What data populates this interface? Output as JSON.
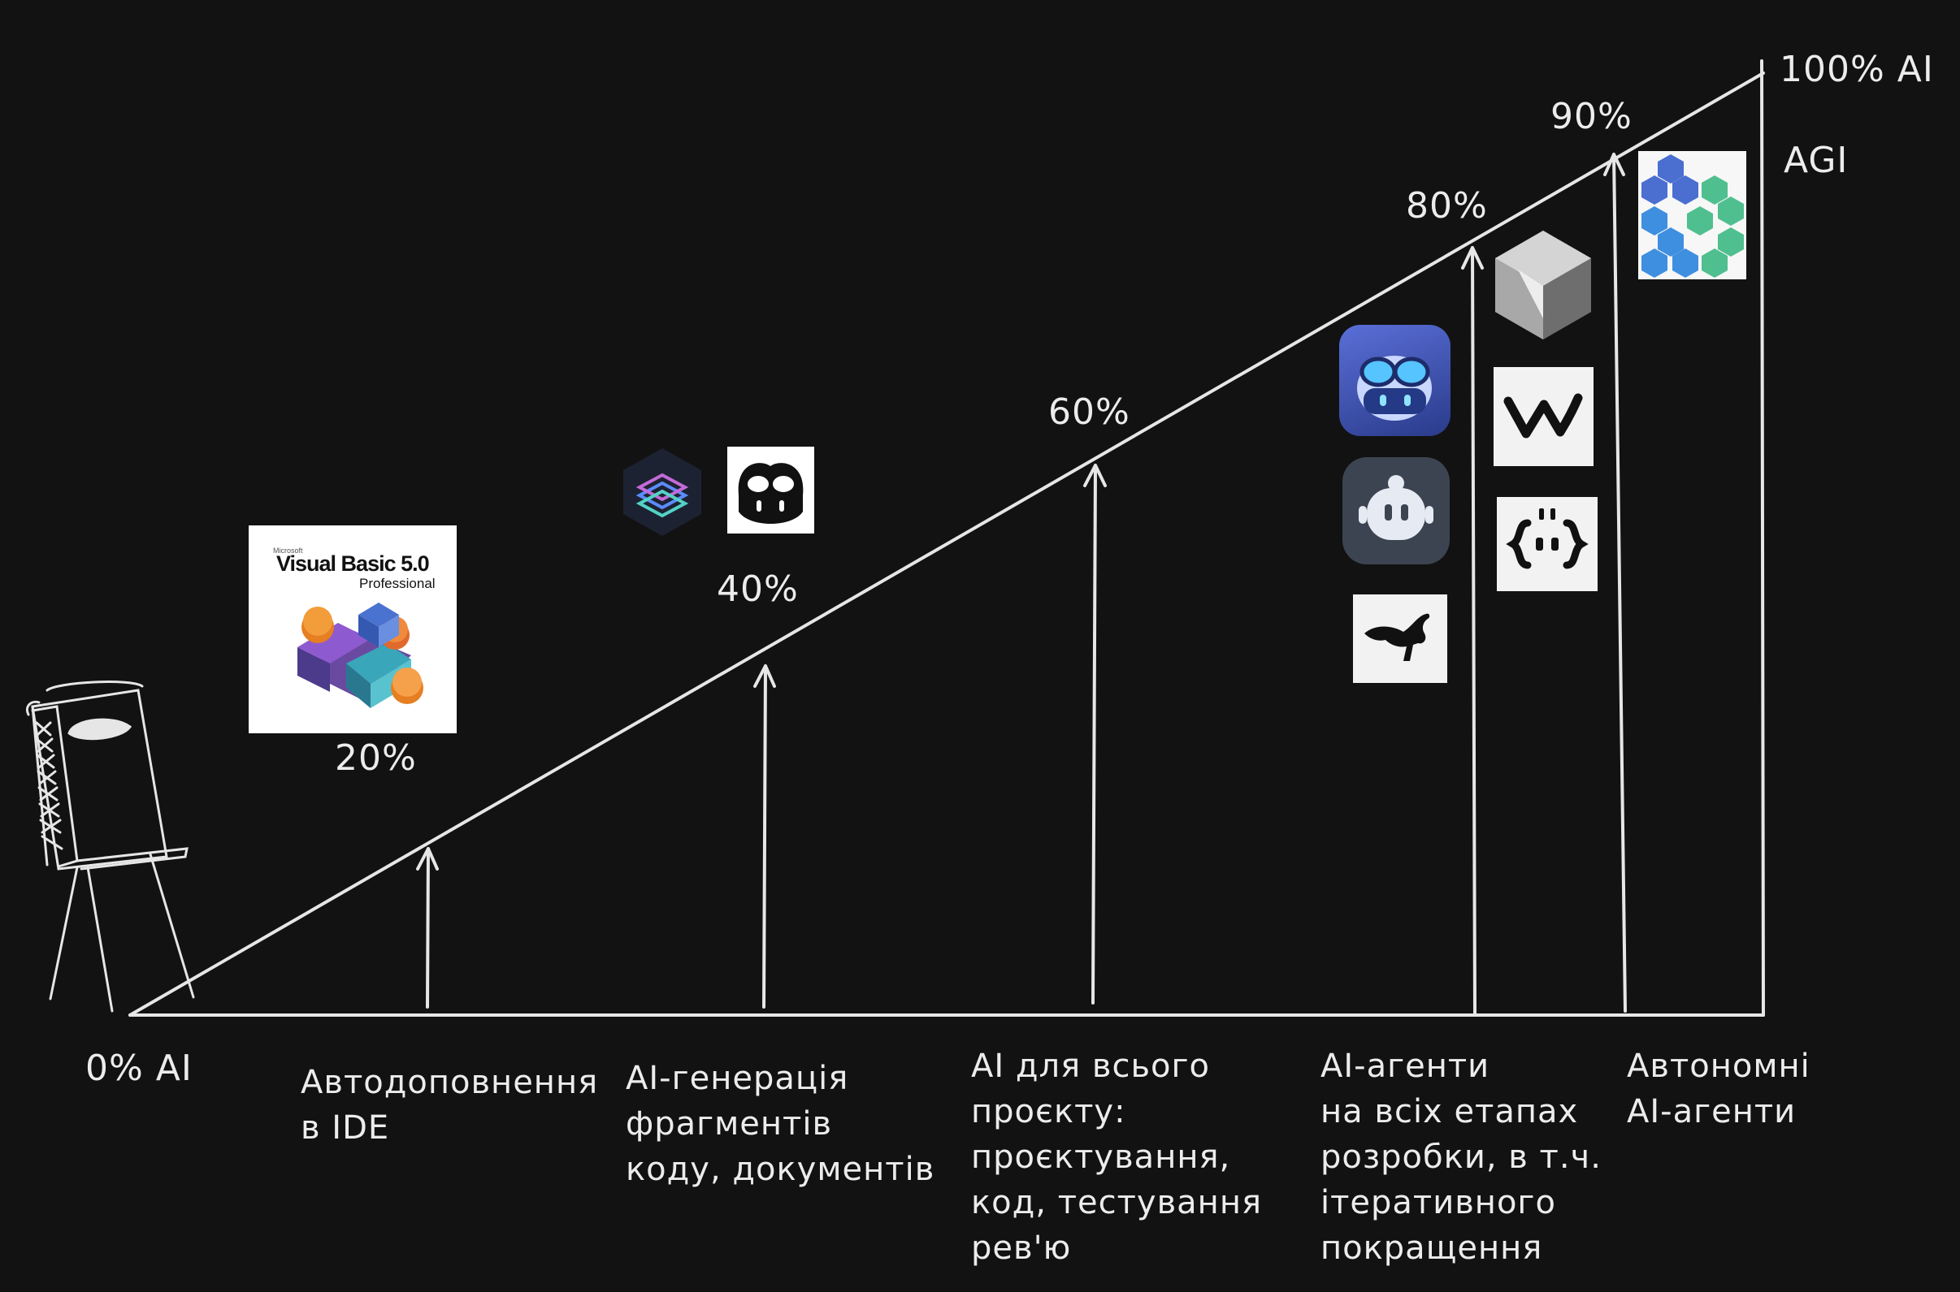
{
  "axis": {
    "start_label": "0% AI",
    "end_label": "100% AI",
    "agi_label": "AGI"
  },
  "stages": [
    {
      "percent": "20%",
      "lines": [
        "Автодоповнення",
        "в IDE"
      ]
    },
    {
      "percent": "40%",
      "lines": [
        "AI-генерація",
        "фрагментів",
        "коду, документів"
      ]
    },
    {
      "percent": "60%",
      "lines": [
        "AI для всього",
        "проєкту:",
        "проєктування,",
        "код, тестування",
        "рев'ю"
      ]
    },
    {
      "percent": "80%",
      "lines": [
        "AI-агенти",
        "на всіх етапах",
        "розробки, в т.ч.",
        "ітеративного",
        "покращення"
      ]
    },
    {
      "percent": "90%",
      "lines": [
        "Автономні",
        "AI-агенти"
      ]
    }
  ],
  "logos": {
    "vb_brand": "Microsoft",
    "vb_title": "Visual Basic 5.0",
    "vb_edition": "Professional"
  },
  "colors": {
    "background": "#121212",
    "line": "#e6e6e6",
    "copilot_blue": "#4a78d8",
    "hex_green": "#4fbf8f",
    "hex_blue": "#3b7fd9"
  }
}
